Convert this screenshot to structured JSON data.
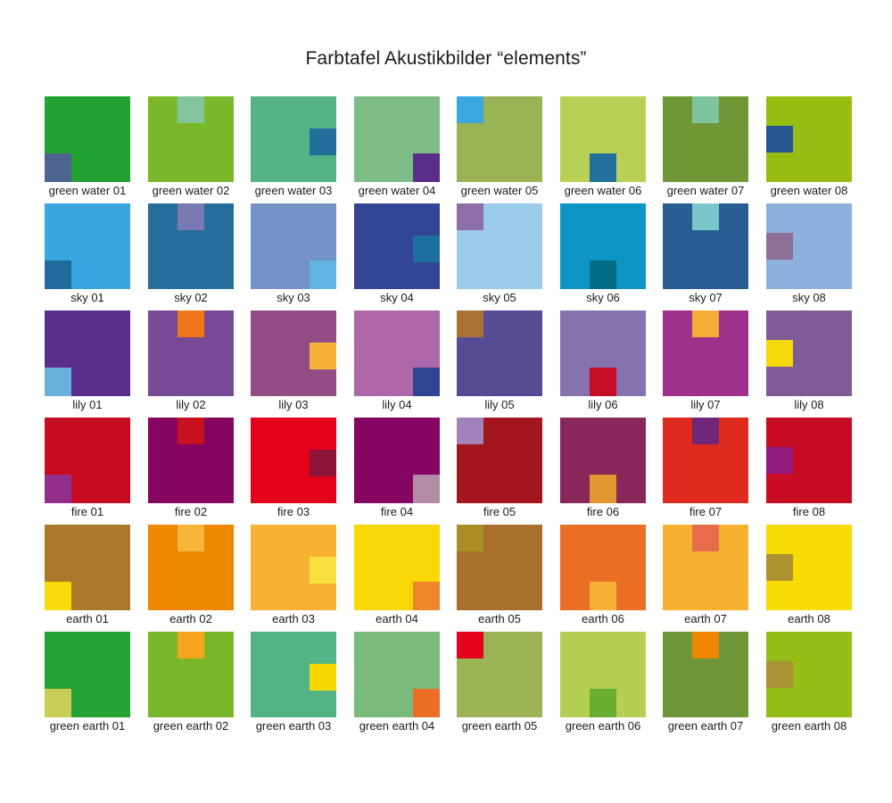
{
  "title": "Farbtafel Akustikbilder “elements”",
  "tiles": [
    {
      "label": "green water 01",
      "base": "#23a233",
      "accent": "#4e6591",
      "pos": "bl"
    },
    {
      "label": "green water 02",
      "base": "#7bb72a",
      "accent": "#82c59c",
      "pos": "tm"
    },
    {
      "label": "green water 03",
      "base": "#55b386",
      "accent": "#256d9d",
      "pos": "mr"
    },
    {
      "label": "green water 04",
      "base": "#7dbd85",
      "accent": "#5b2d8a",
      "pos": "br"
    },
    {
      "label": "green water 05",
      "base": "#9ab354",
      "accent": "#3aa7e0",
      "pos": "tl"
    },
    {
      "label": "green water 06",
      "base": "#b7d055",
      "accent": "#22709e",
      "pos": "bm"
    },
    {
      "label": "green water 07",
      "base": "#6f9735",
      "accent": "#7ec59d",
      "pos": "tm"
    },
    {
      "label": "green water 08",
      "base": "#97bd13",
      "accent": "#25568f",
      "pos": "ml"
    },
    {
      "label": "sky 01",
      "base": "#38a7df",
      "accent": "#206a9c",
      "pos": "bl"
    },
    {
      "label": "sky 02",
      "base": "#266f9c",
      "accent": "#7a79b4",
      "pos": "tm"
    },
    {
      "label": "sky 03",
      "base": "#7593c9",
      "accent": "#62b4e2",
      "pos": "br"
    },
    {
      "label": "sky 04",
      "base": "#334595",
      "accent": "#1f6f9e",
      "pos": "mr"
    },
    {
      "label": "sky 05",
      "base": "#9bcbeb",
      "accent": "#8e6fa6",
      "pos": "tl"
    },
    {
      "label": "sky 06",
      "base": "#0d95c5",
      "accent": "#016c83",
      "pos": "bm"
    },
    {
      "label": "sky 07",
      "base": "#275d91",
      "accent": "#79c7c9",
      "pos": "tm"
    },
    {
      "label": "sky 08",
      "base": "#8cb1dc",
      "accent": "#8d6f98",
      "pos": "ml"
    },
    {
      "label": "lily 01",
      "base": "#5b2d8a",
      "accent": "#6ab0dd",
      "pos": "bl"
    },
    {
      "label": "lily 02",
      "base": "#774a95",
      "accent": "#ef7717",
      "pos": "tm"
    },
    {
      "label": "lily 03",
      "base": "#924e84",
      "accent": "#f8b13a",
      "pos": "mr"
    },
    {
      "label": "lily 04",
      "base": "#ae67a8",
      "accent": "#2f4594",
      "pos": "br"
    },
    {
      "label": "lily 05",
      "base": "#564c94",
      "accent": "#a97334",
      "pos": "tl"
    },
    {
      "label": "lily 06",
      "base": "#8572ae",
      "accent": "#c70d26",
      "pos": "bm"
    },
    {
      "label": "lily 07",
      "base": "#a0318b",
      "accent": "#f6ad37",
      "pos": "tm"
    },
    {
      "label": "lily 08",
      "base": "#7f5c97",
      "accent": "#f4d80b",
      "pos": "ml"
    },
    {
      "label": "fire 01",
      "base": "#c60b20",
      "accent": "#922f8a",
      "pos": "bl"
    },
    {
      "label": "fire 02",
      "base": "#850560",
      "accent": "#c61020",
      "pos": "tm"
    },
    {
      "label": "fire 03",
      "base": "#e3001b",
      "accent": "#8b1437",
      "pos": "mr"
    },
    {
      "label": "fire 04",
      "base": "#860562",
      "accent": "#b28ba8",
      "pos": "br"
    },
    {
      "label": "fire 05",
      "base": "#a4161f",
      "accent": "#a183ba",
      "pos": "tl"
    },
    {
      "label": "fire 06",
      "base": "#88285a",
      "accent": "#e1962f",
      "pos": "bm"
    },
    {
      "label": "fire 07",
      "base": "#df2a20",
      "accent": "#70267a",
      "pos": "tm"
    },
    {
      "label": "fire 08",
      "base": "#c60b22",
      "accent": "#93197f",
      "pos": "ml"
    },
    {
      "label": "earth 01",
      "base": "#a9792c",
      "accent": "#f8db08",
      "pos": "bl"
    },
    {
      "label": "earth 02",
      "base": "#ee8800",
      "accent": "#f7b639",
      "pos": "tm"
    },
    {
      "label": "earth 03",
      "base": "#f8b133",
      "accent": "#fbe041",
      "pos": "mr"
    },
    {
      "label": "earth 04",
      "base": "#f9d605",
      "accent": "#ed862b",
      "pos": "br"
    },
    {
      "label": "earth 05",
      "base": "#a8702c",
      "accent": "#aa8f26",
      "pos": "tl"
    },
    {
      "label": "earth 06",
      "base": "#ea6e23",
      "accent": "#f7b338",
      "pos": "bm"
    },
    {
      "label": "earth 07",
      "base": "#f7b131",
      "accent": "#e86b4b",
      "pos": "tm"
    },
    {
      "label": "earth 08",
      "base": "#f8da05",
      "accent": "#ac9330",
      "pos": "ml"
    },
    {
      "label": "green earth 01",
      "base": "#24a233",
      "accent": "#c9cd55",
      "pos": "bl"
    },
    {
      "label": "green earth 02",
      "base": "#79b62a",
      "accent": "#f5a51b",
      "pos": "tm"
    },
    {
      "label": "green earth 03",
      "base": "#54b385",
      "accent": "#f5d704",
      "pos": "mr"
    },
    {
      "label": "green earth 04",
      "base": "#7abb7b",
      "accent": "#ec6e26",
      "pos": "br"
    },
    {
      "label": "green earth 05",
      "base": "#9cb455",
      "accent": "#e3001b",
      "pos": "tl"
    },
    {
      "label": "green earth 06",
      "base": "#b5cf55",
      "accent": "#67ad2f",
      "pos": "bm"
    },
    {
      "label": "green earth 07",
      "base": "#6e9638",
      "accent": "#ee8700",
      "pos": "tm"
    },
    {
      "label": "green earth 08",
      "base": "#96bd17",
      "accent": "#a89436",
      "pos": "ml"
    }
  ]
}
